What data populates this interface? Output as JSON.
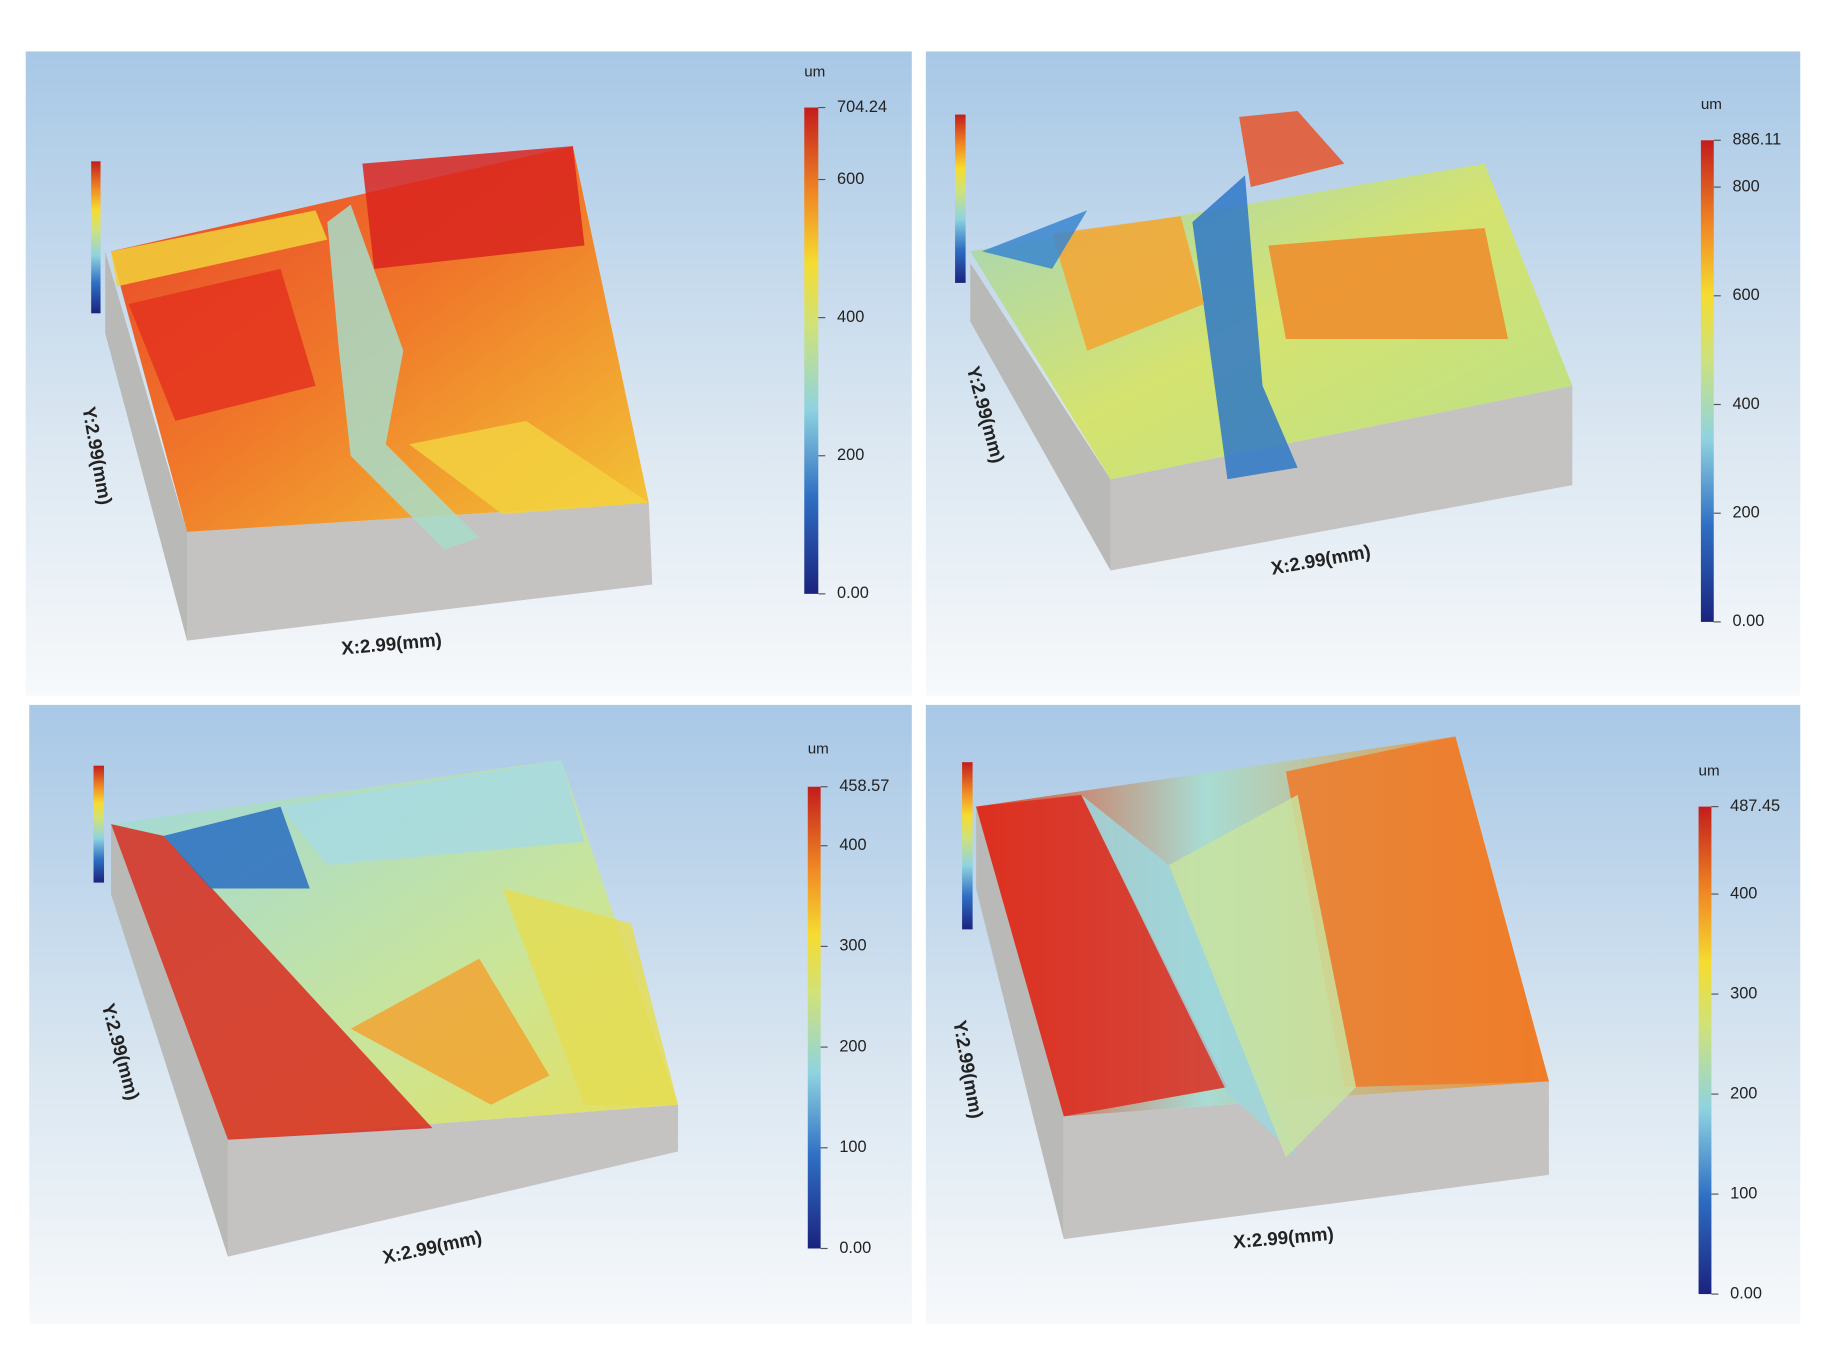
{
  "chart_data": [
    {
      "type": "surface",
      "x_label": "X:2.99(mm)",
      "y_label": "Y:2.99(mm)",
      "colorbar_title": "um",
      "ylim": [
        0,
        704.24
      ],
      "yticks": [
        {
          "value": 0,
          "label": "0.00"
        },
        200,
        400,
        600,
        {
          "value": 704.24,
          "label": "704.24"
        }
      ]
    },
    {
      "type": "surface",
      "x_label": "X:2.99(mm)",
      "y_label": "Y:2.99(mm)",
      "colorbar_title": "um",
      "ylim": [
        0,
        886.11
      ],
      "yticks": [
        {
          "value": 0,
          "label": "0.00"
        },
        200,
        400,
        600,
        800,
        {
          "value": 886.11,
          "label": "886.11"
        }
      ]
    },
    {
      "type": "surface",
      "x_label": "X:2.99(mm)",
      "y_label": "Y:2.99(mm)",
      "colorbar_title": "um",
      "ylim": [
        0,
        458.57
      ],
      "yticks": [
        {
          "value": 0,
          "label": "0.00"
        },
        100,
        200,
        300,
        400,
        {
          "value": 458.57,
          "label": "458.57"
        }
      ]
    },
    {
      "type": "surface",
      "x_label": "X:2.99(mm)",
      "y_label": "Y:2.99(mm)",
      "colorbar_title": "um",
      "ylim": [
        0,
        487.45
      ],
      "yticks": [
        {
          "value": 0,
          "label": "0.00"
        },
        100,
        200,
        300,
        400,
        {
          "value": 487.45,
          "label": "487.45"
        }
      ]
    }
  ]
}
